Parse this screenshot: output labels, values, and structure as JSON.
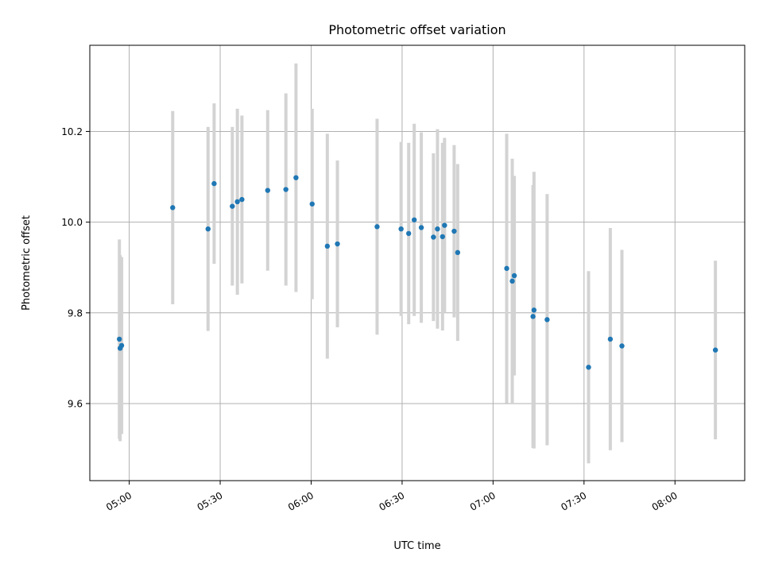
{
  "chart_data": {
    "type": "scatter",
    "title": "Photometric offset variation",
    "xlabel": "UTC time",
    "ylabel": "Photometric offset",
    "x_ticks": [
      "05:00",
      "05:30",
      "06:00",
      "06:30",
      "07:00",
      "07:30",
      "08:00"
    ],
    "y_ticks": [
      "9.6",
      "9.8",
      "10.0",
      "10.2"
    ],
    "xlim": [
      "04:47",
      "08:23"
    ],
    "ylim": [
      9.43,
      10.39
    ],
    "grid": true,
    "error_bar_color": "#d3d3d3",
    "point_color": "#1f77b4",
    "points": [
      {
        "x": "04:56:45",
        "y": 9.742,
        "err": 0.22
      },
      {
        "x": "04:57:00",
        "y": 9.722,
        "err": 0.205
      },
      {
        "x": "04:57:30",
        "y": 9.728,
        "err": 0.195
      },
      {
        "x": "05:14:20",
        "y": 10.032,
        "err": 0.213
      },
      {
        "x": "05:26:00",
        "y": 9.985,
        "err": 0.225
      },
      {
        "x": "05:28:00",
        "y": 10.085,
        "err": 0.177
      },
      {
        "x": "05:34:00",
        "y": 10.035,
        "err": 0.175
      },
      {
        "x": "05:35:40",
        "y": 10.045,
        "err": 0.205
      },
      {
        "x": "05:37:10",
        "y": 10.05,
        "err": 0.185
      },
      {
        "x": "05:45:40",
        "y": 10.07,
        "err": 0.177
      },
      {
        "x": "05:51:40",
        "y": 10.072,
        "err": 0.212
      },
      {
        "x": "05:55:00",
        "y": 10.098,
        "err": 0.252
      },
      {
        "x": "06:00:20",
        "y": 10.04,
        "err": 0.21
      },
      {
        "x": "06:05:20",
        "y": 9.947,
        "err": 0.248
      },
      {
        "x": "06:08:40",
        "y": 9.952,
        "err": 0.184
      },
      {
        "x": "06:21:45",
        "y": 9.99,
        "err": 0.238
      },
      {
        "x": "06:29:40",
        "y": 9.985,
        "err": 0.192
      },
      {
        "x": "06:32:10",
        "y": 9.975,
        "err": 0.2
      },
      {
        "x": "06:34:00",
        "y": 10.005,
        "err": 0.212
      },
      {
        "x": "06:36:20",
        "y": 9.988,
        "err": 0.21
      },
      {
        "x": "06:40:20",
        "y": 9.967,
        "err": 0.185
      },
      {
        "x": "06:41:40",
        "y": 9.985,
        "err": 0.22
      },
      {
        "x": "06:43:20",
        "y": 9.968,
        "err": 0.207
      },
      {
        "x": "06:44:00",
        "y": 9.993,
        "err": 0.193
      },
      {
        "x": "06:47:10",
        "y": 9.98,
        "err": 0.19
      },
      {
        "x": "06:48:20",
        "y": 9.933,
        "err": 0.195
      },
      {
        "x": "07:04:30",
        "y": 9.898,
        "err": 0.297
      },
      {
        "x": "07:06:20",
        "y": 9.87,
        "err": 0.27
      },
      {
        "x": "07:07:00",
        "y": 9.882,
        "err": 0.22
      },
      {
        "x": "07:13:10",
        "y": 9.792,
        "err": 0.29
      },
      {
        "x": "07:13:30",
        "y": 9.806,
        "err": 0.305
      },
      {
        "x": "07:17:50",
        "y": 9.785,
        "err": 0.277
      },
      {
        "x": "07:31:30",
        "y": 9.68,
        "err": 0.212
      },
      {
        "x": "07:38:40",
        "y": 9.742,
        "err": 0.245
      },
      {
        "x": "07:42:30",
        "y": 9.727,
        "err": 0.212
      },
      {
        "x": "08:13:20",
        "y": 9.718,
        "err": 0.197
      }
    ]
  }
}
